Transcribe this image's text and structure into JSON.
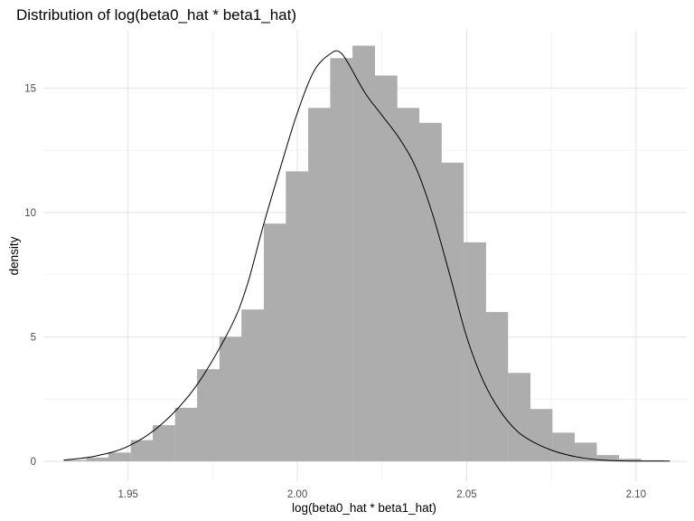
{
  "chart_data": {
    "type": "bar",
    "subtype": "histogram-with-density",
    "title": "Distribution of log(beta0_hat * beta1_hat)",
    "xlabel": "log(beta0_hat * beta1_hat)",
    "ylabel": "density",
    "xlim": [
      1.925,
      2.115
    ],
    "ylim": [
      -0.8,
      17.3
    ],
    "x_ticks": [
      1.95,
      2.0,
      2.05,
      2.1
    ],
    "x_tick_labels": [
      "1.95",
      "2.00",
      "2.05",
      "2.10"
    ],
    "y_ticks": [
      0,
      5,
      10,
      15
    ],
    "y_tick_labels": [
      "0",
      "5",
      "10",
      "15"
    ],
    "grid": true,
    "legend": "none",
    "bin_width": 0.00655,
    "bins": [
      {
        "x_start": 1.9311,
        "density": 0.05
      },
      {
        "x_start": 1.9377,
        "density": 0.15
      },
      {
        "x_start": 1.9442,
        "density": 0.35
      },
      {
        "x_start": 1.9508,
        "density": 0.85
      },
      {
        "x_start": 1.9573,
        "density": 1.45
      },
      {
        "x_start": 1.9639,
        "density": 2.15
      },
      {
        "x_start": 1.9704,
        "density": 3.7
      },
      {
        "x_start": 1.977,
        "density": 5.0
      },
      {
        "x_start": 1.9835,
        "density": 6.1
      },
      {
        "x_start": 1.9901,
        "density": 9.55
      },
      {
        "x_start": 1.9966,
        "density": 11.65
      },
      {
        "x_start": 2.0032,
        "density": 14.2
      },
      {
        "x_start": 2.0097,
        "density": 16.2
      },
      {
        "x_start": 2.0163,
        "density": 16.7
      },
      {
        "x_start": 2.0229,
        "density": 15.5
      },
      {
        "x_start": 2.0294,
        "density": 14.2
      },
      {
        "x_start": 2.036,
        "density": 13.6
      },
      {
        "x_start": 2.0425,
        "density": 12.0
      },
      {
        "x_start": 2.0491,
        "density": 8.8
      },
      {
        "x_start": 2.0556,
        "density": 6.0
      },
      {
        "x_start": 2.0622,
        "density": 3.55
      },
      {
        "x_start": 2.0687,
        "density": 2.1
      },
      {
        "x_start": 2.0753,
        "density": 1.15
      },
      {
        "x_start": 2.0818,
        "density": 0.75
      },
      {
        "x_start": 2.0884,
        "density": 0.25
      },
      {
        "x_start": 2.0949,
        "density": 0.1
      },
      {
        "x_start": 2.1015,
        "density": 0.04
      }
    ],
    "density_curve": {
      "x": [
        1.931,
        1.94,
        1.95,
        1.96,
        1.97,
        1.98,
        1.985,
        1.99,
        1.995,
        2.0,
        2.005,
        2.01,
        2.0125,
        2.015,
        2.02,
        2.025,
        2.03,
        2.035,
        2.04,
        2.045,
        2.05,
        2.055,
        2.06,
        2.065,
        2.07,
        2.075,
        2.08,
        2.085,
        2.09,
        2.095,
        2.1,
        2.105,
        2.11
      ],
      "y": [
        0.05,
        0.2,
        0.6,
        1.5,
        3.0,
        5.3,
        7.0,
        9.5,
        11.8,
        14.0,
        15.7,
        16.4,
        16.45,
        16.0,
        14.8,
        13.9,
        13.0,
        11.8,
        9.9,
        7.5,
        5.0,
        3.2,
        2.0,
        1.2,
        0.75,
        0.45,
        0.25,
        0.12,
        0.05,
        0.02,
        0.01,
        0.01,
        0.01
      ]
    },
    "colors": {
      "bar_fill": "#adadad",
      "curve": "#000000",
      "grid_major": "#e3e3e3",
      "grid_minor": "#f0f0f0"
    }
  }
}
